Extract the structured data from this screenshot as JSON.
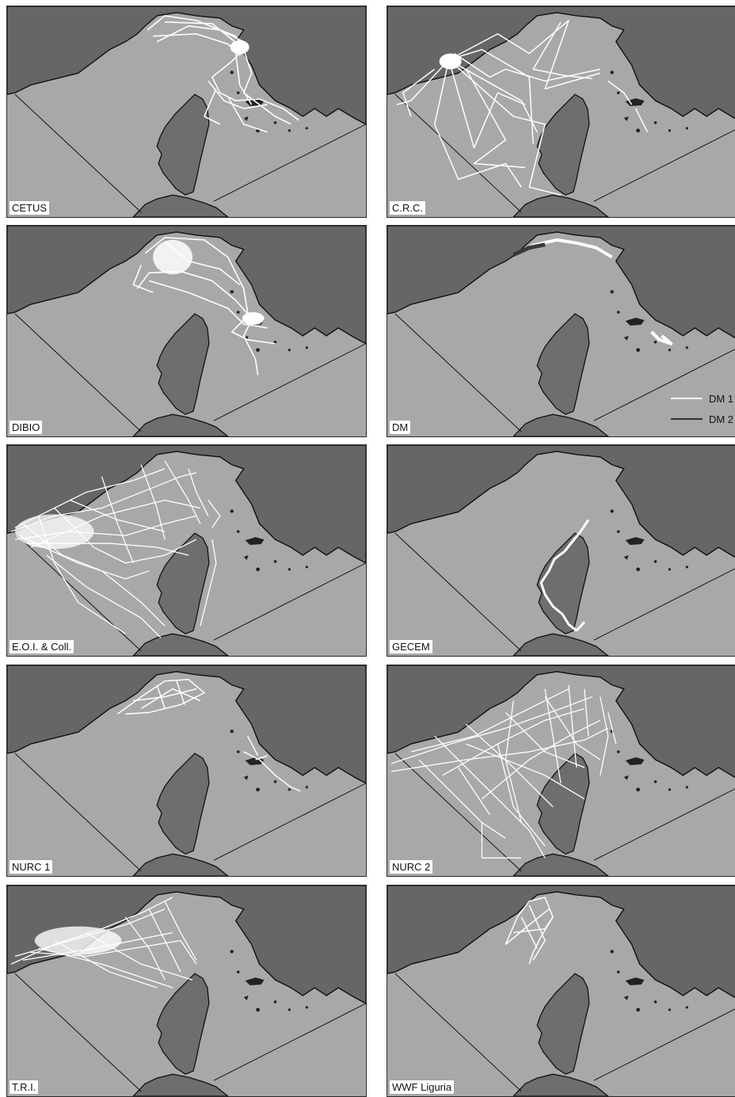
{
  "colors": {
    "sea": "#a8a8a8",
    "land": "#666666",
    "coast": "#111111",
    "track_dm1": "#ffffff",
    "track_dm2": "#3a3a3a",
    "label_bg": "#ffffff"
  },
  "panels": [
    {
      "label": "CETUS"
    },
    {
      "label": "C.R.C."
    },
    {
      "label": "DIBIO"
    },
    {
      "label": "DM"
    },
    {
      "label": "E.O.I. & Coll."
    },
    {
      "label": "GECEM"
    },
    {
      "label": "NURC 1"
    },
    {
      "label": "NURC 2"
    },
    {
      "label": "T.R.I."
    },
    {
      "label": "WWF Liguria"
    }
  ],
  "legend": {
    "items": [
      {
        "label": "DM 1",
        "color": "#ffffff"
      },
      {
        "label": "DM 2",
        "color": "#333333"
      }
    ]
  }
}
